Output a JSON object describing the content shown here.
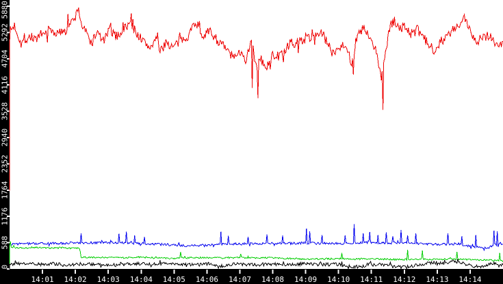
{
  "window": {
    "background": "#ffffff"
  },
  "chart_data": {
    "type": "line",
    "title": "",
    "xlabel": "",
    "ylabel": "",
    "grid": false,
    "legend": false,
    "plot_background": "#ffffff",
    "axis_strip_color": "#000000",
    "axis_text_color": "#ffffff",
    "x_axis": {
      "kind": "time",
      "visible_range": [
        "14:00",
        "14:15"
      ],
      "tick_interval_minutes": 1,
      "tick_labels": [
        "14:01",
        "14:02",
        "14:03",
        "14:04",
        "14:05",
        "14:06",
        "14:07",
        "14:08",
        "14:09",
        "14:10",
        "14:11",
        "14:12",
        "14:13",
        "14:14"
      ]
    },
    "y_axis": {
      "range": [
        0,
        5880
      ],
      "tick_values": [
        0,
        588,
        1176,
        1764,
        2352,
        2940,
        3528,
        4116,
        4704,
        5292,
        5880
      ],
      "tick_labels": [
        "0",
        "588",
        "1176",
        "1764",
        "2352",
        "2940",
        "3528",
        "4116",
        "4704",
        "5292",
        "5880"
      ]
    },
    "note": "Four noisy 1px traces on white. Anchors are [minutes after 14:00, value] envelope points; traces are reconstructed as anchors + uniform noise of noise_amplitude; spikes are [minute, value] single-sample outliers read from the screenshot. start_value is the value the trace jumps from with a vertical segment at the left edge.",
    "noise_seed": 7,
    "series": [
      {
        "name": "red-series",
        "color": "#ee0000",
        "start_value": 1750,
        "noise_amplitude": 110,
        "burst_probability": 0.07,
        "anchors": [
          [
            0,
            5300
          ],
          [
            0.15,
            5450
          ],
          [
            0.35,
            5050
          ],
          [
            0.6,
            5200
          ],
          [
            0.9,
            5150
          ],
          [
            1.2,
            5350
          ],
          [
            1.5,
            5250
          ],
          [
            1.75,
            5450
          ],
          [
            1.95,
            5550
          ],
          [
            2.08,
            5800
          ],
          [
            2.2,
            5450
          ],
          [
            2.35,
            5250
          ],
          [
            2.5,
            5050
          ],
          [
            2.65,
            5300
          ],
          [
            2.85,
            5100
          ],
          [
            3.05,
            5350
          ],
          [
            3.25,
            5200
          ],
          [
            3.45,
            5350
          ],
          [
            3.65,
            5500
          ],
          [
            3.85,
            5300
          ],
          [
            4.05,
            5100
          ],
          [
            4.25,
            4950
          ],
          [
            4.45,
            5150
          ],
          [
            4.6,
            4850
          ],
          [
            4.75,
            5100
          ],
          [
            4.95,
            4950
          ],
          [
            5.2,
            5100
          ],
          [
            5.45,
            5250
          ],
          [
            5.65,
            5550
          ],
          [
            5.85,
            5250
          ],
          [
            6.1,
            5300
          ],
          [
            6.35,
            5100
          ],
          [
            6.6,
            4900
          ],
          [
            6.85,
            4700
          ],
          [
            7.05,
            4900
          ],
          [
            7.2,
            4650
          ],
          [
            7.35,
            5200
          ],
          [
            7.5,
            4500
          ],
          [
            7.65,
            4700
          ],
          [
            7.8,
            4450
          ],
          [
            8.0,
            4800
          ],
          [
            8.2,
            4750
          ],
          [
            8.45,
            4950
          ],
          [
            8.7,
            5050
          ],
          [
            8.95,
            5150
          ],
          [
            9.2,
            5200
          ],
          [
            9.45,
            5300
          ],
          [
            9.6,
            5150
          ],
          [
            9.8,
            4850
          ],
          [
            10.0,
            4950
          ],
          [
            10.2,
            5050
          ],
          [
            10.4,
            4600
          ],
          [
            10.55,
            5150
          ],
          [
            10.75,
            5400
          ],
          [
            10.95,
            5150
          ],
          [
            11.15,
            4850
          ],
          [
            11.3,
            4300
          ],
          [
            11.42,
            4800
          ],
          [
            11.55,
            5350
          ],
          [
            11.68,
            5600
          ],
          [
            11.85,
            5350
          ],
          [
            12.0,
            5450
          ],
          [
            12.2,
            5250
          ],
          [
            12.4,
            5350
          ],
          [
            12.55,
            5200
          ],
          [
            12.7,
            5050
          ],
          [
            12.9,
            4900
          ],
          [
            13.1,
            5100
          ],
          [
            13.3,
            5200
          ],
          [
            13.5,
            5350
          ],
          [
            13.7,
            5450
          ],
          [
            13.85,
            5600
          ],
          [
            14.0,
            5350
          ],
          [
            14.2,
            5100
          ],
          [
            14.4,
            5200
          ],
          [
            14.6,
            5250
          ],
          [
            14.8,
            5000
          ],
          [
            15,
            5050
          ]
        ],
        "spikes": [
          [
            2.1,
            5850
          ],
          [
            3.7,
            5720
          ],
          [
            7.38,
            4050
          ],
          [
            7.56,
            3820
          ],
          [
            10.46,
            4350
          ],
          [
            11.36,
            3560
          ],
          [
            13.82,
            5690
          ]
        ]
      },
      {
        "name": "blue-series",
        "color": "#0000ee",
        "start_value": null,
        "noise_amplitude": 26,
        "burst_probability": 0.05,
        "anchors": [
          [
            0,
            555
          ],
          [
            0.5,
            565
          ],
          [
            1,
            570
          ],
          [
            1.5,
            575
          ],
          [
            2,
            580
          ],
          [
            2.5,
            585
          ],
          [
            3,
            590
          ],
          [
            3.5,
            585
          ],
          [
            4,
            570
          ],
          [
            4.5,
            555
          ],
          [
            5,
            535
          ],
          [
            5.4,
            515
          ],
          [
            5.8,
            525
          ],
          [
            6.2,
            545
          ],
          [
            6.6,
            555
          ],
          [
            7,
            560
          ],
          [
            7.5,
            565
          ],
          [
            8,
            570
          ],
          [
            8.5,
            575
          ],
          [
            9,
            580
          ],
          [
            9.5,
            570
          ],
          [
            10,
            565
          ],
          [
            10.5,
            585
          ],
          [
            11,
            595
          ],
          [
            11.5,
            580
          ],
          [
            12,
            585
          ],
          [
            12.4,
            570
          ],
          [
            12.8,
            550
          ],
          [
            13.2,
            555
          ],
          [
            13.6,
            560
          ],
          [
            14,
            510
          ],
          [
            14.3,
            475
          ],
          [
            14.55,
            465
          ],
          [
            14.75,
            540
          ],
          [
            15,
            560
          ]
        ],
        "spikes": [
          [
            2.18,
            800
          ],
          [
            3.32,
            790
          ],
          [
            3.55,
            835
          ],
          [
            3.8,
            745
          ],
          [
            4.1,
            720
          ],
          [
            6.42,
            835
          ],
          [
            6.65,
            740
          ],
          [
            7.25,
            720
          ],
          [
            7.82,
            770
          ],
          [
            8.3,
            745
          ],
          [
            9.03,
            905
          ],
          [
            9.12,
            840
          ],
          [
            9.5,
            760
          ],
          [
            10.2,
            750
          ],
          [
            10.47,
            1000
          ],
          [
            10.75,
            800
          ],
          [
            10.95,
            830
          ],
          [
            11.2,
            760
          ],
          [
            11.45,
            820
          ],
          [
            11.65,
            730
          ],
          [
            11.9,
            870
          ],
          [
            12.1,
            750
          ],
          [
            12.35,
            800
          ],
          [
            13.32,
            800
          ],
          [
            13.75,
            730
          ],
          [
            14.18,
            760
          ],
          [
            14.72,
            860
          ],
          [
            14.82,
            840
          ]
        ]
      },
      {
        "name": "green-series",
        "color": "#00cc00",
        "start_value": 0,
        "noise_amplitude": 18,
        "burst_probability": 0.04,
        "anchors": [
          [
            0,
            490
          ],
          [
            0.4,
            470
          ],
          [
            0.8,
            485
          ],
          [
            1.2,
            465
          ],
          [
            1.6,
            475
          ],
          [
            1.9,
            465
          ],
          [
            2.14,
            470
          ],
          [
            2.17,
            265
          ],
          [
            2.5,
            255
          ],
          [
            3,
            260
          ],
          [
            3.5,
            250
          ],
          [
            4,
            265
          ],
          [
            4.5,
            245
          ],
          [
            5,
            240
          ],
          [
            5.5,
            250
          ],
          [
            6,
            255
          ],
          [
            6.5,
            245
          ],
          [
            7,
            255
          ],
          [
            7.5,
            245
          ],
          [
            8,
            255
          ],
          [
            8.5,
            235
          ],
          [
            9,
            220
          ],
          [
            9.5,
            225
          ],
          [
            10,
            230
          ],
          [
            10.5,
            225
          ],
          [
            11,
            230
          ],
          [
            11.5,
            215
          ],
          [
            12,
            210
          ],
          [
            12.3,
            225
          ],
          [
            12.7,
            215
          ],
          [
            13,
            210
          ],
          [
            13.4,
            220
          ],
          [
            13.8,
            215
          ],
          [
            14.2,
            205
          ],
          [
            14.6,
            195
          ],
          [
            14.85,
            185
          ],
          [
            15,
            175
          ]
        ],
        "spikes": [
          [
            0.02,
            620
          ],
          [
            5.2,
            380
          ],
          [
            7.02,
            335
          ],
          [
            10.1,
            355
          ],
          [
            12.1,
            430
          ],
          [
            12.56,
            410
          ],
          [
            13.6,
            380
          ],
          [
            14.9,
            360
          ]
        ]
      },
      {
        "name": "black-series",
        "color": "#000000",
        "start_value": 0,
        "noise_amplitude": 38,
        "burst_probability": 0.06,
        "anchors": [
          [
            0,
            85
          ],
          [
            0.3,
            125
          ],
          [
            0.8,
            105
          ],
          [
            1.3,
            115
          ],
          [
            1.8,
            95
          ],
          [
            2.3,
            115
          ],
          [
            2.8,
            105
          ],
          [
            3.3,
            95
          ],
          [
            3.8,
            115
          ],
          [
            4.3,
            105
          ],
          [
            4.8,
            120
          ],
          [
            5.3,
            105
          ],
          [
            5.8,
            95
          ],
          [
            6.1,
            115
          ],
          [
            6.35,
            35
          ],
          [
            6.6,
            95
          ],
          [
            7,
            105
          ],
          [
            7.5,
            95
          ],
          [
            8,
            110
          ],
          [
            8.5,
            100
          ],
          [
            9,
            115
          ],
          [
            9.5,
            95
          ],
          [
            9.9,
            110
          ],
          [
            10.3,
            65
          ],
          [
            10.6,
            45
          ],
          [
            10.9,
            95
          ],
          [
            11.3,
            105
          ],
          [
            11.7,
            55
          ],
          [
            12,
            35
          ],
          [
            12.3,
            75
          ],
          [
            12.6,
            115
          ],
          [
            12.9,
            145
          ],
          [
            13.2,
            125
          ],
          [
            13.5,
            165
          ],
          [
            13.8,
            125
          ],
          [
            14.1,
            65
          ],
          [
            14.4,
            45
          ],
          [
            14.7,
            125
          ],
          [
            15,
            110
          ]
        ],
        "spikes": [
          [
            13.62,
            230
          ]
        ]
      }
    ]
  }
}
